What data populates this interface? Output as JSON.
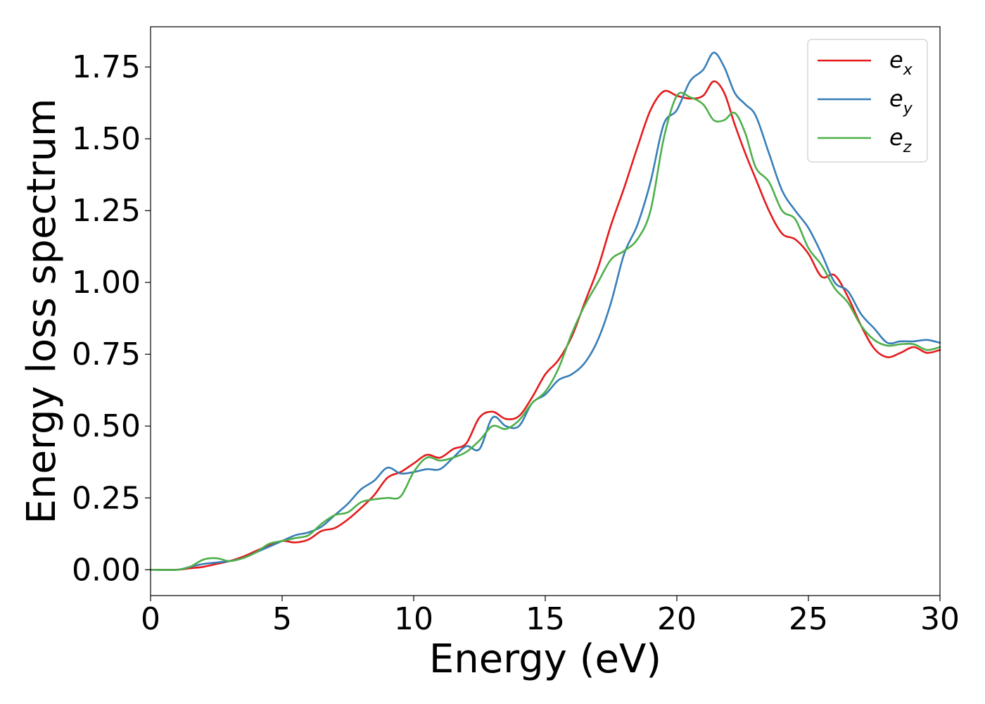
{
  "chart_data": {
    "type": "line",
    "title": "",
    "xlabel": "Energy (eV)",
    "ylabel": "Energy loss spectrum",
    "xlim": [
      0,
      30
    ],
    "ylim": [
      -0.09,
      1.89
    ],
    "xticks": [
      0,
      5,
      10,
      15,
      20,
      25,
      30
    ],
    "xtick_labels": [
      "0",
      "5",
      "10",
      "15",
      "20",
      "25",
      "30"
    ],
    "yticks": [
      0,
      0.25,
      0.5,
      0.75,
      1.0,
      1.25,
      1.5,
      1.75
    ],
    "ytick_labels": [
      "0.00",
      "0.25",
      "0.50",
      "0.75",
      "1.00",
      "1.25",
      "1.50",
      "1.75"
    ],
    "grid": false,
    "legend_position": "top-right",
    "series": [
      {
        "name": "e",
        "subscript": "x",
        "color": "#e41a1c",
        "x": [
          0,
          1,
          1.5,
          2,
          2.5,
          3,
          3.5,
          4,
          4.5,
          5,
          5.5,
          6,
          6.5,
          7,
          7.5,
          8,
          8.5,
          9,
          9.5,
          10,
          10.5,
          11,
          11.5,
          12,
          12.5,
          13,
          13.5,
          14,
          14.5,
          15,
          15.5,
          16,
          16.5,
          17,
          17.5,
          18,
          18.5,
          19,
          19.5,
          20,
          20.5,
          21,
          21.4,
          21.8,
          22.2,
          22.6,
          23,
          23.5,
          24,
          24.5,
          25,
          25.5,
          26,
          26.5,
          27,
          27.5,
          28,
          28.5,
          29,
          29.5,
          30
        ],
        "y": [
          0,
          0,
          0.005,
          0.01,
          0.02,
          0.03,
          0.045,
          0.065,
          0.085,
          0.1,
          0.095,
          0.105,
          0.135,
          0.145,
          0.175,
          0.215,
          0.26,
          0.32,
          0.34,
          0.37,
          0.4,
          0.39,
          0.42,
          0.44,
          0.53,
          0.55,
          0.525,
          0.535,
          0.6,
          0.68,
          0.73,
          0.81,
          0.93,
          1.05,
          1.2,
          1.33,
          1.47,
          1.6,
          1.665,
          1.65,
          1.64,
          1.65,
          1.7,
          1.66,
          1.55,
          1.45,
          1.36,
          1.25,
          1.17,
          1.15,
          1.1,
          1.02,
          1.025,
          0.95,
          0.85,
          0.77,
          0.74,
          0.755,
          0.775,
          0.755,
          0.765
        ]
      },
      {
        "name": "e",
        "subscript": "y",
        "color": "#377eb8",
        "x": [
          0,
          1,
          1.5,
          2,
          2.5,
          3,
          3.5,
          4,
          4.5,
          5,
          5.5,
          6,
          6.5,
          7,
          7.5,
          8,
          8.5,
          9,
          9.5,
          10,
          10.5,
          11,
          11.5,
          12,
          12.5,
          13,
          13.5,
          14,
          14.5,
          15,
          15.5,
          16,
          16.5,
          17,
          17.5,
          18,
          18.5,
          19,
          19.5,
          20,
          20.5,
          21,
          21.4,
          21.8,
          22.2,
          22.6,
          23,
          23.5,
          24,
          24.5,
          25,
          25.5,
          26,
          26.5,
          27,
          27.5,
          28,
          28.5,
          29,
          29.5,
          30
        ],
        "y": [
          0,
          0,
          0.01,
          0.02,
          0.025,
          0.03,
          0.04,
          0.06,
          0.08,
          0.1,
          0.12,
          0.13,
          0.15,
          0.19,
          0.23,
          0.28,
          0.31,
          0.355,
          0.335,
          0.34,
          0.35,
          0.35,
          0.39,
          0.43,
          0.42,
          0.53,
          0.5,
          0.5,
          0.58,
          0.61,
          0.66,
          0.68,
          0.72,
          0.8,
          0.93,
          1.1,
          1.2,
          1.35,
          1.55,
          1.6,
          1.7,
          1.74,
          1.8,
          1.75,
          1.66,
          1.62,
          1.58,
          1.45,
          1.32,
          1.25,
          1.19,
          1.1,
          1.0,
          0.97,
          0.89,
          0.84,
          0.79,
          0.795,
          0.795,
          0.8,
          0.79
        ]
      },
      {
        "name": "e",
        "subscript": "z",
        "color": "#4daf4a",
        "x": [
          0,
          1,
          1.5,
          2,
          2.5,
          3,
          3.5,
          4,
          4.5,
          5,
          5.5,
          6,
          6.5,
          7,
          7.5,
          8,
          8.5,
          9,
          9.5,
          10,
          10.5,
          11,
          11.5,
          12,
          12.5,
          13,
          13.5,
          14,
          14.5,
          15,
          15.5,
          16,
          16.5,
          17,
          17.5,
          18,
          18.5,
          19,
          19.5,
          20,
          20.5,
          21,
          21.4,
          21.8,
          22.2,
          22.6,
          23,
          23.5,
          24,
          24.5,
          25,
          25.5,
          26,
          26.5,
          27,
          27.5,
          28,
          28.5,
          29,
          29.5,
          30
        ],
        "y": [
          0,
          0,
          0.01,
          0.035,
          0.04,
          0.03,
          0.04,
          0.06,
          0.09,
          0.1,
          0.11,
          0.12,
          0.16,
          0.19,
          0.2,
          0.235,
          0.245,
          0.25,
          0.255,
          0.34,
          0.39,
          0.38,
          0.39,
          0.41,
          0.45,
          0.5,
          0.49,
          0.52,
          0.58,
          0.62,
          0.7,
          0.82,
          0.92,
          1.0,
          1.08,
          1.11,
          1.15,
          1.25,
          1.5,
          1.65,
          1.645,
          1.62,
          1.565,
          1.565,
          1.59,
          1.52,
          1.4,
          1.35,
          1.25,
          1.22,
          1.12,
          1.06,
          0.98,
          0.93,
          0.85,
          0.8,
          0.78,
          0.785,
          0.785,
          0.765,
          0.775
        ]
      }
    ]
  }
}
